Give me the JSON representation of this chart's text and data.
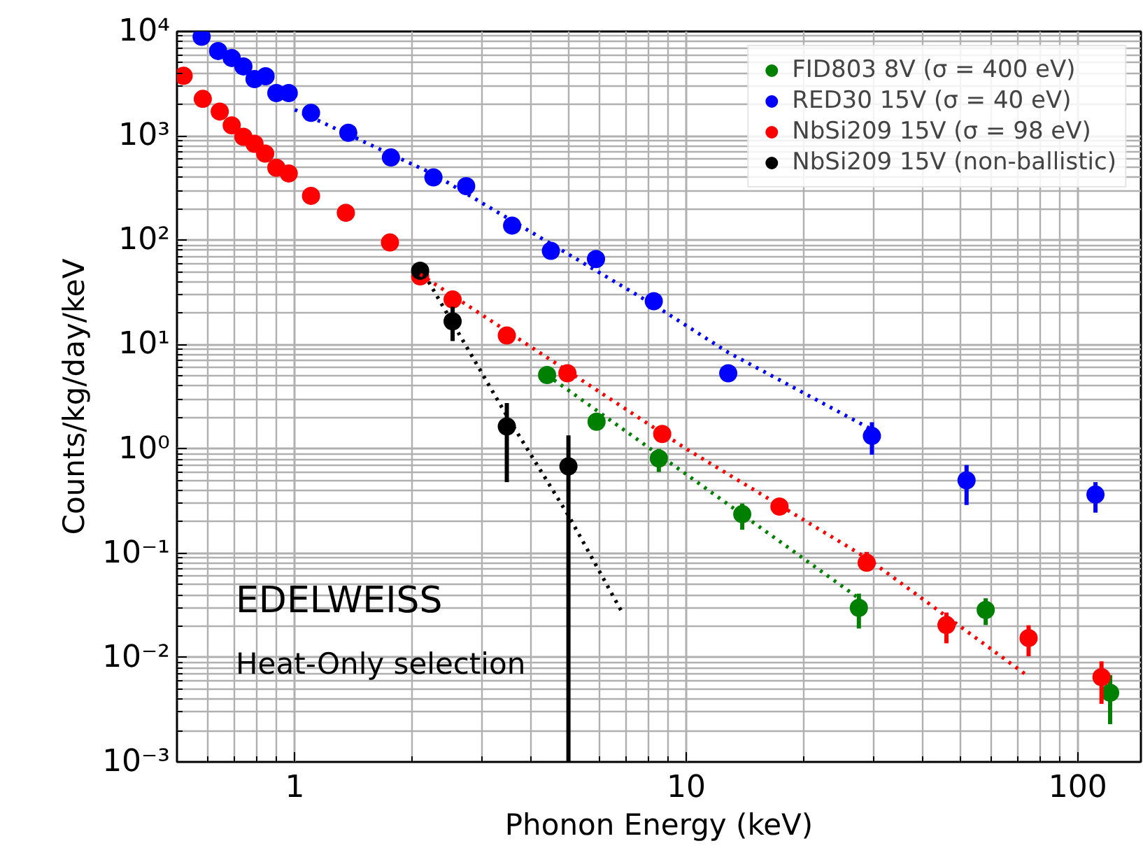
{
  "chart_data": {
    "type": "scatter",
    "xlabel": "Phonon Energy (keV)",
    "ylabel": "Counts/kg/day/keV",
    "log": "xy",
    "grid": true,
    "legend": "top right",
    "marker": "circle",
    "xlim": [
      0.5,
      145
    ],
    "ylim": [
      0.001,
      10000
    ],
    "xticks": [
      1,
      10,
      100
    ],
    "yticks": [
      {
        "value": 0.001,
        "label": "10⁻³"
      },
      {
        "value": 0.01,
        "label": "10⁻²"
      },
      {
        "value": 0.1,
        "label": "10⁻¹"
      },
      {
        "value": 1,
        "label": "10⁰"
      },
      {
        "value": 10,
        "label": "10¹"
      },
      {
        "value": 100,
        "label": "10²"
      },
      {
        "value": 1000,
        "label": "10³"
      },
      {
        "value": 10000,
        "label": "10⁴"
      }
    ],
    "annotations": [
      "EDELWEISS",
      "Heat-Only selection"
    ],
    "series": [
      {
        "name": "FID803 8V (σ = 400 eV)",
        "color": "#008000",
        "x": [
          4.41,
          5.9,
          8.51,
          13.9,
          27.6,
          58.2,
          121
        ],
        "values": [
          5.1,
          1.82,
          0.81,
          0.237,
          0.03,
          0.0286,
          0.0046
        ],
        "errors": [
          null,
          null,
          [
            0.6,
            1.0
          ],
          [
            0.168,
            0.3
          ],
          [
            0.019,
            0.041
          ],
          [
            0.0205,
            0.037
          ],
          [
            0.0023,
            0.0068
          ]
        ]
      },
      {
        "name": "RED30 15V (σ = 40 eV)",
        "color": "#0000ff",
        "x": [
          0.578,
          0.637,
          0.69,
          0.739,
          0.789,
          0.842,
          0.897,
          0.965,
          1.1,
          1.37,
          1.76,
          2.26,
          2.74,
          3.59,
          4.51,
          5.88,
          8.26,
          12.8,
          29.8,
          52,
          111
        ],
        "values": [
          8900,
          6500,
          5570,
          4630,
          3500,
          3720,
          2570,
          2570,
          1660,
          1070,
          620,
          400,
          330,
          138,
          79,
          66,
          26,
          5.3,
          1.33,
          0.5,
          0.365
        ],
        "errors": [
          null,
          null,
          null,
          null,
          null,
          null,
          null,
          null,
          null,
          null,
          null,
          null,
          null,
          null,
          [
            66,
            95
          ],
          null,
          null,
          [
            4.5,
            6.2
          ],
          [
            0.88,
            1.8
          ],
          [
            0.29,
            0.7
          ],
          [
            0.245,
            0.48
          ]
        ]
      },
      {
        "name": "NbSi209 15V (σ = 98 eV)",
        "color": "#ff0000",
        "x": [
          0.52,
          0.582,
          0.643,
          0.69,
          0.739,
          0.789,
          0.84,
          0.897,
          0.965,
          1.1,
          1.35,
          1.75,
          2.09,
          2.53,
          3.48,
          4.97,
          8.68,
          17.3,
          28.9,
          46.2,
          74.9,
          115
        ],
        "values": [
          3760,
          2260,
          1710,
          1260,
          980,
          840,
          675,
          495,
          436,
          266,
          183,
          95,
          45,
          27,
          12.2,
          5.3,
          1.39,
          0.28,
          0.081,
          0.0205,
          0.0154,
          0.0065
        ],
        "errors": [
          null,
          null,
          null,
          null,
          null,
          null,
          null,
          null,
          null,
          null,
          null,
          null,
          null,
          null,
          null,
          null,
          null,
          null,
          [
            0.069,
            0.103
          ],
          [
            0.0137,
            0.027
          ],
          [
            0.0103,
            0.0204
          ],
          [
            0.0036,
            0.0092
          ]
        ]
      },
      {
        "name": "NbSi209 15V (non-ballistic)",
        "color": "#000000",
        "x": [
          2.09,
          2.53,
          3.48,
          5.0
        ],
        "values": [
          51,
          16.7,
          1.64,
          0.68
        ],
        "errors": [
          [
            42,
            61
          ],
          [
            10.8,
            23
          ],
          [
            0.48,
            2.75
          ],
          [
            0.001,
            1.35
          ]
        ]
      },
      {
        "type": "line",
        "marker": "none",
        "line_style": "dotted",
        "color": "#0000ff",
        "x": [
          1.0,
          2.26,
          8.26,
          12.8,
          29.8
        ],
        "values": [
          1780,
          430,
          24,
          8.4,
          1.53
        ]
      },
      {
        "type": "line",
        "marker": "none",
        "line_style": "dotted",
        "color": "#ff0000",
        "x": [
          2.09,
          4.97,
          10,
          28.9,
          74
        ],
        "values": [
          47,
          5.6,
          1.0,
          0.09,
          0.0068
        ]
      },
      {
        "type": "line",
        "marker": "none",
        "line_style": "dotted",
        "color": "#008000",
        "x": [
          4.41,
          10,
          27.6
        ],
        "values": [
          5.1,
          0.57,
          0.037
        ]
      },
      {
        "type": "line",
        "marker": "none",
        "line_style": "dotted",
        "color": "#000000",
        "x": [
          2.09,
          3.5,
          5.0,
          6.86
        ],
        "values": [
          55,
          2.0,
          0.23,
          0.027
        ]
      }
    ]
  }
}
